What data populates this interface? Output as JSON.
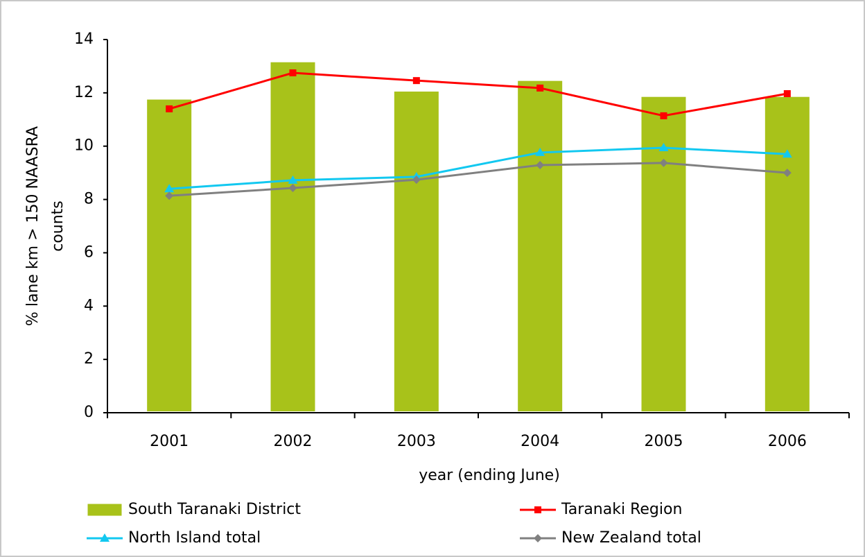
{
  "chart_data": {
    "type": "bar-line",
    "x_label": "year (ending June)",
    "y_label": [
      "% lane km > 150 NAASRA",
      "counts"
    ],
    "categories": [
      "2001",
      "2002",
      "2003",
      "2004",
      "2005",
      "2006"
    ],
    "ylim": [
      0,
      14
    ],
    "yticks": [
      0,
      2,
      4,
      6,
      8,
      10,
      12,
      14
    ],
    "series": [
      {
        "name": "South Taranaki District",
        "type": "bar",
        "color": "#a8c21a",
        "values": [
          11.8,
          13.2,
          12.1,
          12.5,
          11.9,
          11.9
        ]
      },
      {
        "name": "Taranaki Region",
        "type": "line",
        "marker": "square",
        "color": "#ff0000",
        "values": [
          11.4,
          12.75,
          12.46,
          12.18,
          11.14,
          11.97
        ]
      },
      {
        "name": "North Island total",
        "type": "line",
        "marker": "triangle",
        "color": "#12c8f0",
        "values": [
          8.4,
          8.72,
          8.85,
          9.76,
          9.94,
          9.7
        ]
      },
      {
        "name": "New Zealand total",
        "type": "line",
        "marker": "diamond",
        "color": "#808080",
        "values": [
          8.14,
          8.43,
          8.74,
          9.29,
          9.37,
          9.0
        ]
      }
    ]
  }
}
